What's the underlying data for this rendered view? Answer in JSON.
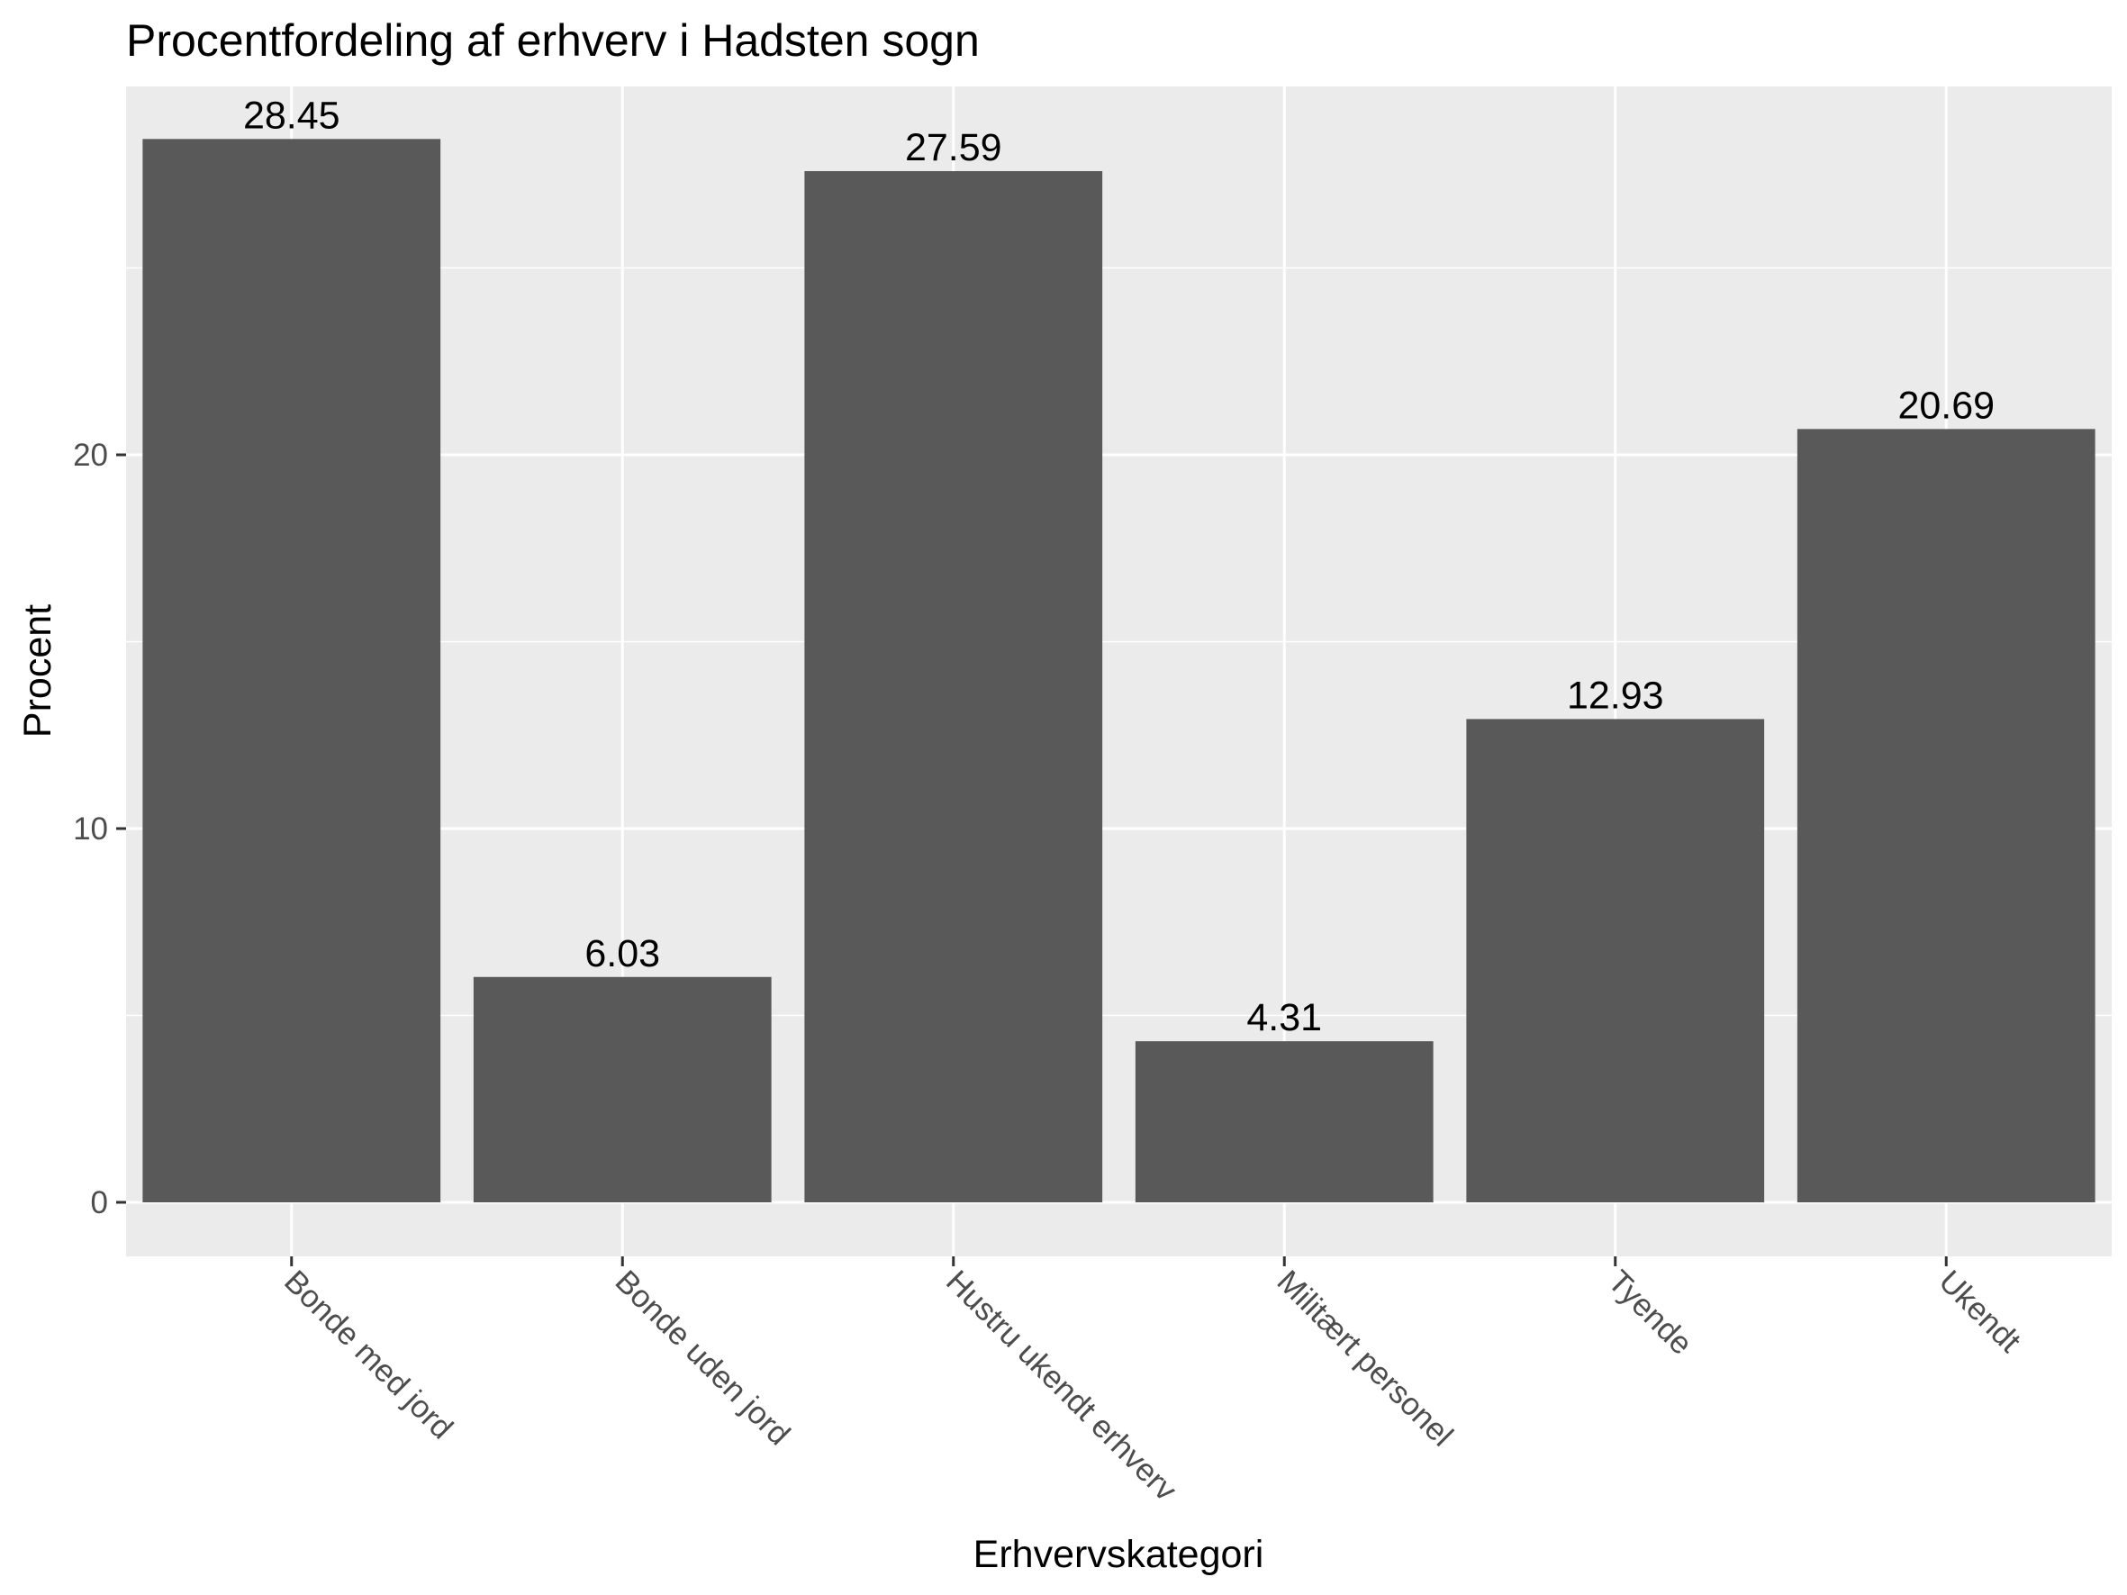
{
  "chart_data": {
    "type": "bar",
    "title": "Procentfordeling af erhverv i Hadsten sogn",
    "xlabel": "Erhvervskategori",
    "ylabel": "Procent",
    "categories": [
      "Bonde med jord",
      "Bonde uden jord",
      "Hustru ukendt erhverv",
      "Militært personel",
      "Tyende",
      "Ukendt"
    ],
    "values": [
      28.45,
      6.03,
      27.59,
      4.31,
      12.93,
      20.69
    ],
    "data_labels": [
      "28.45",
      "6.03",
      "27.59",
      "4.31",
      "12.93",
      "20.69"
    ],
    "y_ticks": [
      0,
      10,
      20
    ],
    "y_tick_labels": [
      "0",
      "10",
      "20"
    ],
    "ylim": [
      -1.42,
      29.87
    ],
    "grid": true,
    "legend": "none",
    "colors": {
      "bar": "#595959",
      "panel": "#ebebeb",
      "grid": "#ffffff",
      "tick": "#333333",
      "tick_label": "#4d4d4d"
    }
  }
}
